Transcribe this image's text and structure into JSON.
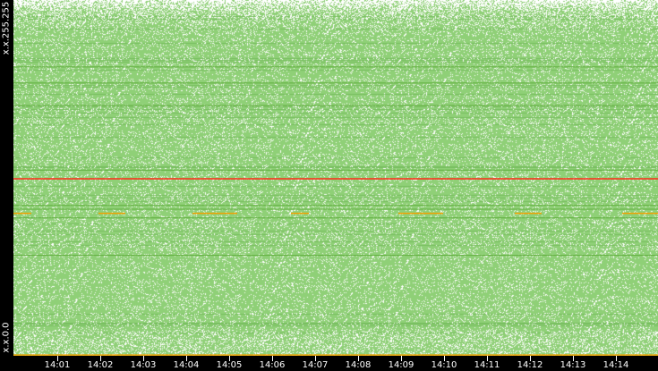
{
  "chart_data": {
    "type": "heatmap",
    "y_axis": {
      "min_label": "x.x.0.0",
      "max_label": "x.x.255.255",
      "range": [
        0,
        65535
      ]
    },
    "x_axis": {
      "ticks": [
        "14:01",
        "14:02",
        "14:03",
        "14:04",
        "14:05",
        "14:06",
        "14:07",
        "14:08",
        "14:09",
        "14:10",
        "14:11",
        "14:12",
        "14:13",
        "14:14"
      ],
      "range": [
        "14:00",
        "14:14:55"
      ]
    },
    "colors": {
      "low": "#8fd077",
      "mid": "#5fae3c",
      "high": "#f0a000",
      "peak": "#ff2a1a",
      "background": "#ffffff"
    },
    "highlighted_rows": [
      {
        "address_index": 32600,
        "level": "peak",
        "span": "full"
      },
      {
        "address_index": 26250,
        "level": "high",
        "span": "partial"
      },
      {
        "address_index": 150,
        "level": "high",
        "span": "full"
      },
      {
        "address_index": 53200,
        "level": "mid",
        "span": "full"
      },
      {
        "address_index": 50250,
        "level": "mid",
        "span": "full"
      },
      {
        "address_index": 46100,
        "level": "mid",
        "span": "full"
      },
      {
        "address_index": 34200,
        "level": "mid",
        "span": "full"
      },
      {
        "address_index": 27700,
        "level": "mid",
        "span": "full"
      },
      {
        "address_index": 25400,
        "level": "mid",
        "span": "full"
      },
      {
        "address_index": 27000,
        "level": "mid",
        "span": "full"
      },
      {
        "address_index": 18500,
        "level": "mid",
        "span": "full"
      }
    ]
  }
}
